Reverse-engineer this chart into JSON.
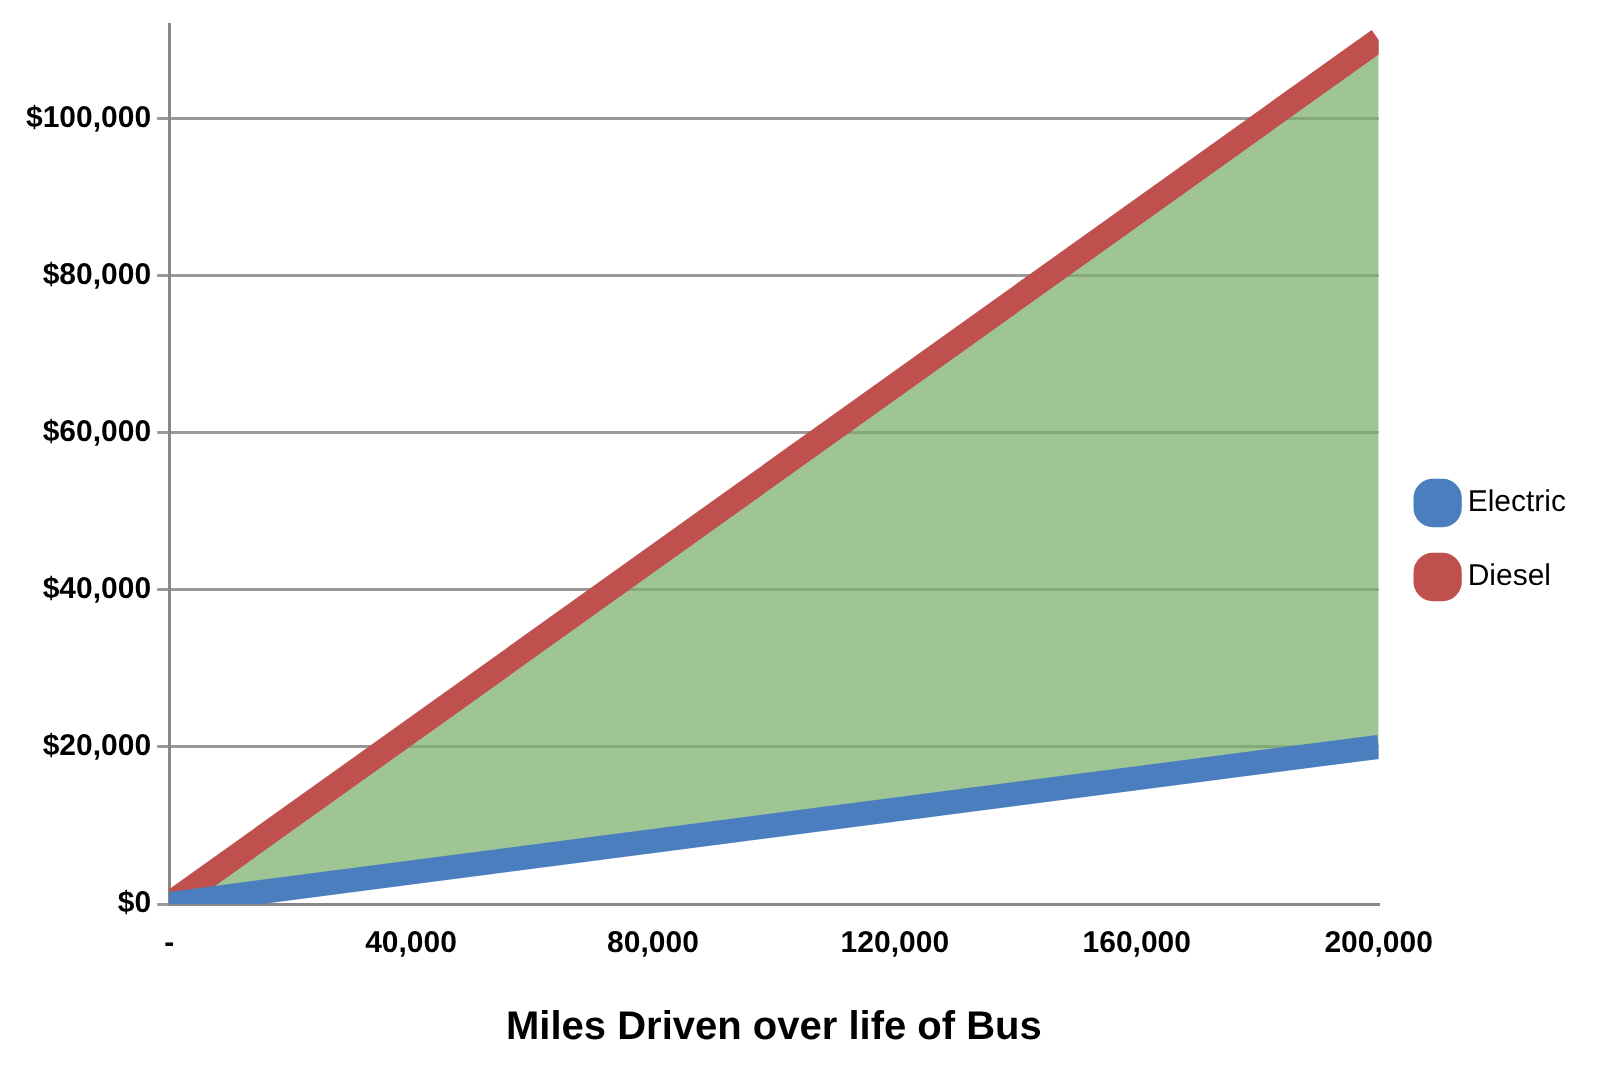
{
  "chart_data": {
    "type": "line",
    "xlabel": "Miles Driven over life of Bus",
    "x": [
      0,
      200000
    ],
    "series": [
      {
        "name": "Electric",
        "color": "#4a7ebf",
        "values": [
          0,
          20000
        ]
      },
      {
        "name": "Diesel",
        "color": "#c0504d",
        "values": [
          0,
          110000
        ],
        "lower": [
          0,
          20000
        ],
        "upper": [
          0,
          110000
        ]
      }
    ],
    "xlim": [
      0,
      200000
    ],
    "xticks": [
      {
        "value": 0,
        "label": "-"
      },
      {
        "value": 40000,
        "label": "40,000"
      },
      {
        "value": 80000,
        "label": "80,000"
      },
      {
        "value": 120000,
        "label": "120,000"
      },
      {
        "value": 160000,
        "label": "160,000"
      },
      {
        "value": 200000,
        "label": "200,000"
      }
    ],
    "ylim": [
      0,
      112000
    ],
    "yticks": [
      {
        "value": 0,
        "label": "$0"
      },
      {
        "value": 20000,
        "label": "$20,000"
      },
      {
        "value": 40000,
        "label": "$40,000"
      },
      {
        "value": 60000,
        "label": "$60,000"
      },
      {
        "value": 80000,
        "label": "$80,000"
      },
      {
        "value": 100000,
        "label": "$100,000"
      }
    ],
    "grid": "y",
    "legend": "right",
    "marker": "none",
    "line_style": "solid"
  }
}
